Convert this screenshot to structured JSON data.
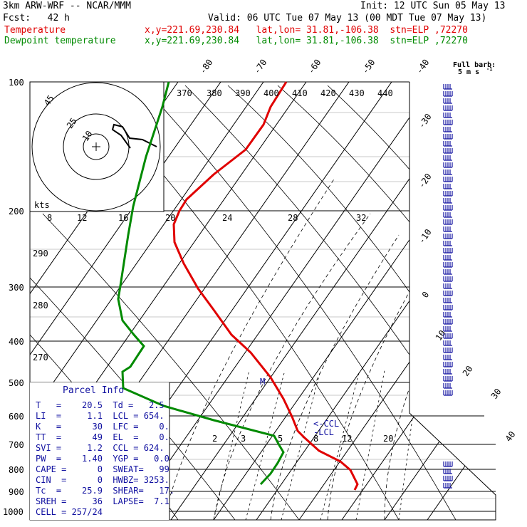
{
  "header": {
    "model": "3km ARW-WRF -- NCAR/MMM",
    "init": "Init: 12 UTC Sun 05 May 13",
    "fcst": "Fcst:   42 h",
    "valid": "Valid: 06 UTC Tue 07 May 13 (00 MDT Tue 07 May 13)",
    "temp_label": "Temperature",
    "temp_info": "x,y=221.69,230.84   lat,lon= 31.81,-106.38  stn=ELP ,72270",
    "dew_label": "Dewpoint temperature",
    "dew_info": "x,y=221.69,230.84   lat,lon= 31.81,-106.38  stn=ELP ,72270"
  },
  "barb_key": {
    "line1": "Full barb:",
    "line2": "5 m s",
    "sup": "-1"
  },
  "parcel_info": {
    "title": "Parcel Info",
    "rows": [
      "T   =    20.5  Td =   2.5",
      "LI  =     1.1  LCL = 654.",
      "K   =      30  LFC =    0.",
      "TT  =      49  EL  =    0.",
      "SVI =     1.2  CCL = 624.",
      "PW  =    1.40  YGP =   0.0",
      "CAPE =      0  SWEAT=   99",
      "CIN  =      0  HWBZ= 3253.",
      "Tc  =    25.9  SHEAR=   17.",
      "SREH =     36  LAPSE=  7.1",
      "CELL = 257/24"
    ]
  },
  "hodograph": {
    "unit_label": "kts",
    "ring_labels": [
      "10",
      "25",
      "45"
    ]
  },
  "markers": {
    "ccl": "<-CCL",
    "lcl": "-LCL",
    "m": "M"
  },
  "colors": {
    "temperature": "#e00000",
    "dewpoint": "#008a00",
    "barbs": "#1010a0",
    "grid": "#000000"
  },
  "chart_data": {
    "type": "line",
    "pressure_levels": [
      "100",
      "200",
      "300",
      "400",
      "500",
      "600",
      "700",
      "800",
      "900",
      "1000"
    ],
    "isotherm_labels_top": [
      "-80",
      "-70",
      "-60",
      "-50",
      "-40"
    ],
    "isotherm_labels_right": [
      "-30",
      "-20",
      "-10",
      "0",
      "10",
      "20",
      "30",
      "40"
    ],
    "theta_labels": [
      "370",
      "380",
      "390",
      "400",
      "410",
      "420",
      "430",
      "440"
    ],
    "theta_labels_left": [
      "290",
      "280",
      "270"
    ],
    "mixing_ratio_labels_upper": [
      "8",
      "12",
      "16",
      "20",
      "24",
      "28",
      "32"
    ],
    "mixing_ratio_labels_lower": [
      "2",
      "3",
      "5",
      "8",
      "12",
      "20"
    ],
    "series": [
      {
        "name": "Temperature",
        "points": [
          [
            100,
            -62
          ],
          [
            200,
            -57
          ],
          [
            300,
            -42
          ],
          [
            400,
            -26
          ],
          [
            500,
            -13
          ],
          [
            600,
            -3
          ],
          [
            700,
            5
          ],
          [
            800,
            15
          ],
          [
            850,
            19
          ],
          [
            870,
            20
          ]
        ]
      },
      {
        "name": "Dewpoint temperature",
        "points": [
          [
            100,
            -98
          ],
          [
            200,
            -98
          ],
          [
            300,
            -85
          ],
          [
            400,
            -62
          ],
          [
            500,
            -52
          ],
          [
            600,
            -23
          ],
          [
            700,
            0
          ],
          [
            800,
            0
          ],
          [
            850,
            2
          ]
        ]
      }
    ]
  }
}
